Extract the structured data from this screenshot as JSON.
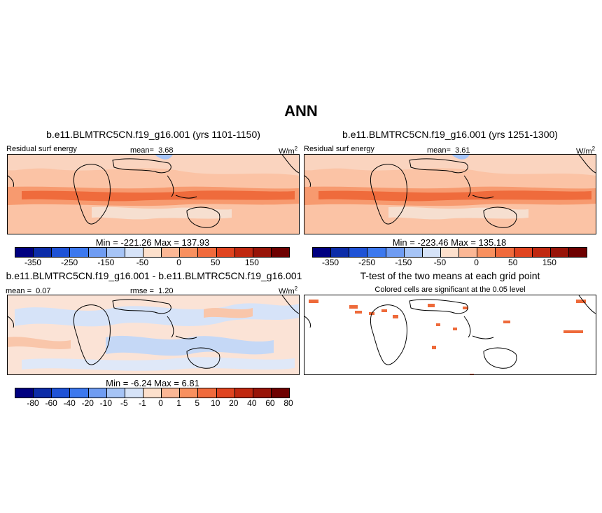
{
  "suptitle": "ANN",
  "colors": {
    "abs": [
      "#000080",
      "#0c2ca8",
      "#1e52d6",
      "#3c78ee",
      "#6f9cf2",
      "#a6c4f6",
      "#d6e3f8",
      "#fde0cc",
      "#fbb795",
      "#f8905f",
      "#f06a3c",
      "#e04420",
      "#c02810",
      "#981408",
      "#6e0000"
    ],
    "diff": [
      "#000080",
      "#0c2ca8",
      "#1e52d6",
      "#3c78ee",
      "#6f9cf2",
      "#a6c4f6",
      "#d6e3f8",
      "#fde0cc",
      "#fbb795",
      "#f8905f",
      "#f06a3c",
      "#e04420",
      "#c02810",
      "#981408",
      "#6e0000"
    ],
    "significant": "#ee6a3a"
  },
  "panels": {
    "p1": {
      "title": "b.e11.BLMTRC5CN.f19_g16.001 (yrs 1101-1150)",
      "left": "Residual surf energy",
      "mean_label": "mean=",
      "mean": "3.68",
      "units": "W/m",
      "units_sup": "2",
      "minmax": "Min = -221.26 Max = 137.93"
    },
    "p2": {
      "title": "b.e11.BLMTRC5CN.f19_g16.001 (yrs 1251-1300)",
      "left": "Residual surf energy",
      "mean_label": "mean=",
      "mean": "3.61",
      "units": "W/m",
      "units_sup": "2",
      "minmax": "Min = -223.46 Max = 135.18"
    },
    "p3": {
      "title": "b.e11.BLMTRC5CN.f19_g16.001 - b.e11.BLMTRC5CN.f19_g16.001",
      "mean_label": "mean =",
      "mean": "0.07",
      "rmse_label": "rmse =",
      "rmse": "1.20",
      "units": "W/m",
      "units_sup": "2",
      "minmax": "Min =  -6.24 Max =   6.81"
    },
    "p4": {
      "title": "T-test of the two means at each grid point",
      "subtitle": "Colored cells are significant at the 0.05 level"
    }
  },
  "chart_data": [
    {
      "type": "heatmap",
      "title": "b.e11.BLMTRC5CN.f19_g16.001 (yrs 1101-1150)",
      "variable": "Residual surf energy",
      "units": "W/m2",
      "mean": 3.68,
      "min": -221.26,
      "max": 137.93,
      "colorbar_ticks": [
        "-350",
        "-250",
        "-150",
        "-50",
        "0",
        "50",
        "150"
      ]
    },
    {
      "type": "heatmap",
      "title": "b.e11.BLMTRC5CN.f19_g16.001 (yrs 1251-1300)",
      "variable": "Residual surf energy",
      "units": "W/m2",
      "mean": 3.61,
      "min": -223.46,
      "max": 135.18,
      "colorbar_ticks": [
        "-350",
        "-250",
        "-150",
        "-50",
        "0",
        "50",
        "150"
      ]
    },
    {
      "type": "heatmap",
      "title": "b.e11.BLMTRC5CN.f19_g16.001 - b.e11.BLMTRC5CN.f19_g16.001",
      "units": "W/m2",
      "mean": 0.07,
      "rmse": 1.2,
      "min": -6.24,
      "max": 6.81,
      "colorbar_ticks": [
        "-80",
        "-60",
        "-40",
        "-20",
        "-10",
        "-5",
        "-1",
        "0",
        "1",
        "5",
        "10",
        "20",
        "40",
        "60",
        "80"
      ]
    },
    {
      "type": "heatmap",
      "title": "T-test of the two means at each grid point",
      "subtitle": "Colored cells are significant at the 0.05 level"
    }
  ]
}
